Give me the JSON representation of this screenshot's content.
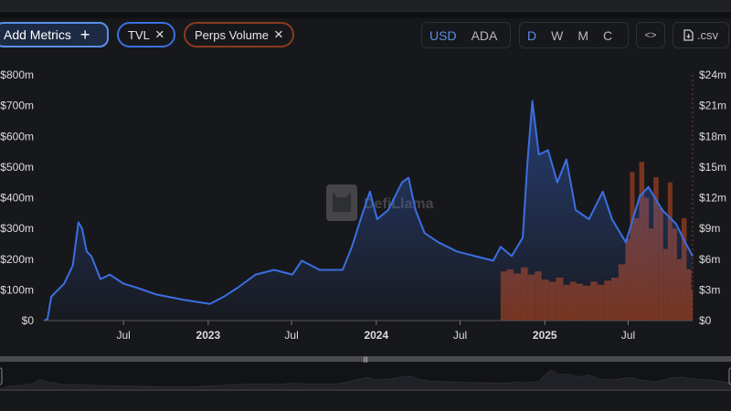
{
  "toolbar": {
    "add_metrics": "Add Metrics",
    "add_icon": "+",
    "chips": [
      {
        "label": "TVL",
        "color": "#3b6fe0"
      },
      {
        "label": "Perps Volume",
        "color": "#8a3a1e"
      }
    ],
    "close_icon": "×",
    "currency": [
      "USD",
      "ADA"
    ],
    "currency_selected": "USD",
    "period": [
      "D",
      "W",
      "M",
      "C"
    ],
    "period_selected": "D",
    "embed_icon": "<>",
    "csv_label": ".csv"
  },
  "watermark": "DefiLlama",
  "chart_data": {
    "type": "line",
    "xlim": [
      "2022-01-09",
      "2025-11-18"
    ],
    "x_ticks": [
      {
        "date": "2022-07-01",
        "label": "Jul",
        "bold": false
      },
      {
        "date": "2023-01-01",
        "label": "2023",
        "bold": true
      },
      {
        "date": "2023-07-01",
        "label": "Jul",
        "bold": false
      },
      {
        "date": "2024-01-01",
        "label": "2024",
        "bold": true
      },
      {
        "date": "2024-07-01",
        "label": "Jul",
        "bold": false
      },
      {
        "date": "2025-01-01",
        "label": "2025",
        "bold": true
      },
      {
        "date": "2025-07-01",
        "label": "Jul",
        "bold": false
      }
    ],
    "y_left": {
      "ylim": [
        0,
        800
      ],
      "ticks": [
        "$0",
        "$100m",
        "$200m",
        "$300m",
        "$400m",
        "$500m",
        "$600m",
        "$700m",
        "$800m"
      ]
    },
    "y_right": {
      "ylim": [
        0,
        24
      ],
      "ticks": [
        "$0",
        "$3m",
        "$6m",
        "$9m",
        "$12m",
        "$15m",
        "$18m",
        "$21m",
        "$24m"
      ]
    },
    "grid": false,
    "legend": "none",
    "series": [
      {
        "name": "TVL",
        "axis": "left",
        "type": "area",
        "color": "#3b6fe0",
        "unit": "$m",
        "points": [
          [
            "2022-01-09",
            0
          ],
          [
            "2022-01-17",
            5
          ],
          [
            "2022-01-25",
            77
          ],
          [
            "2022-02-02",
            90
          ],
          [
            "2022-02-22",
            120
          ],
          [
            "2022-03-13",
            180
          ],
          [
            "2022-03-25",
            320
          ],
          [
            "2022-04-02",
            300
          ],
          [
            "2022-04-12",
            225
          ],
          [
            "2022-04-22",
            210
          ],
          [
            "2022-05-12",
            135
          ],
          [
            "2022-06-01",
            150
          ],
          [
            "2022-07-01",
            120
          ],
          [
            "2022-07-30",
            107
          ],
          [
            "2022-09-08",
            86
          ],
          [
            "2022-11-07",
            68
          ],
          [
            "2023-01-05",
            54
          ],
          [
            "2023-02-04",
            78
          ],
          [
            "2023-03-06",
            107
          ],
          [
            "2023-04-14",
            150
          ],
          [
            "2023-05-24",
            165
          ],
          [
            "2023-07-03",
            150
          ],
          [
            "2023-07-23",
            195
          ],
          [
            "2023-08-31",
            165
          ],
          [
            "2023-10-20",
            165
          ],
          [
            "2023-11-09",
            240
          ],
          [
            "2023-11-28",
            330
          ],
          [
            "2023-12-18",
            420
          ],
          [
            "2024-01-03",
            330
          ],
          [
            "2024-01-27",
            360
          ],
          [
            "2024-02-26",
            450
          ],
          [
            "2024-03-11",
            465
          ],
          [
            "2024-03-26",
            360
          ],
          [
            "2024-04-15",
            285
          ],
          [
            "2024-05-15",
            255
          ],
          [
            "2024-06-24",
            225
          ],
          [
            "2024-08-02",
            210
          ],
          [
            "2024-09-11",
            195
          ],
          [
            "2024-09-27",
            240
          ],
          [
            "2024-10-21",
            210
          ],
          [
            "2024-11-14",
            270
          ],
          [
            "2024-11-24",
            510
          ],
          [
            "2024-12-05",
            715
          ],
          [
            "2024-12-19",
            540
          ],
          [
            "2025-01-08",
            555
          ],
          [
            "2025-01-28",
            450
          ],
          [
            "2025-02-17",
            525
          ],
          [
            "2025-03-09",
            360
          ],
          [
            "2025-04-07",
            330
          ],
          [
            "2025-05-07",
            420
          ],
          [
            "2025-05-27",
            330
          ],
          [
            "2025-06-26",
            255
          ],
          [
            "2025-07-26",
            405
          ],
          [
            "2025-08-14",
            435
          ],
          [
            "2025-09-13",
            360
          ],
          [
            "2025-10-13",
            315
          ],
          [
            "2025-11-02",
            255
          ],
          [
            "2025-11-18",
            210
          ]
        ]
      },
      {
        "name": "Perps Volume",
        "axis": "right",
        "type": "bar",
        "color": "#8a3a1e",
        "unit": "$m",
        "points": [
          [
            "2024-09-27",
            4.8
          ],
          [
            "2024-10-10",
            5.0
          ],
          [
            "2024-10-25",
            4.6
          ],
          [
            "2024-11-10",
            5.2
          ],
          [
            "2024-11-25",
            4.5
          ],
          [
            "2024-12-10",
            4.8
          ],
          [
            "2024-12-25",
            4.0
          ],
          [
            "2025-01-10",
            3.8
          ],
          [
            "2025-01-25",
            4.2
          ],
          [
            "2025-02-10",
            3.5
          ],
          [
            "2025-02-25",
            3.8
          ],
          [
            "2025-03-10",
            3.6
          ],
          [
            "2025-03-25",
            3.4
          ],
          [
            "2025-04-10",
            3.8
          ],
          [
            "2025-04-25",
            3.5
          ],
          [
            "2025-05-10",
            3.9
          ],
          [
            "2025-05-25",
            4.2
          ],
          [
            "2025-06-10",
            5.5
          ],
          [
            "2025-06-25",
            8.0
          ],
          [
            "2025-07-05",
            14.5
          ],
          [
            "2025-07-15",
            10.0
          ],
          [
            "2025-07-25",
            15.5
          ],
          [
            "2025-08-05",
            12.0
          ],
          [
            "2025-08-15",
            9.0
          ],
          [
            "2025-08-25",
            14.0
          ],
          [
            "2025-09-05",
            11.0
          ],
          [
            "2025-09-15",
            7.0
          ],
          [
            "2025-09-25",
            13.5
          ],
          [
            "2025-10-05",
            9.0
          ],
          [
            "2025-10-15",
            6.0
          ],
          [
            "2025-10-25",
            10.0
          ],
          [
            "2025-11-05",
            5.0
          ],
          [
            "2025-11-15",
            3.0
          ]
        ]
      }
    ]
  }
}
